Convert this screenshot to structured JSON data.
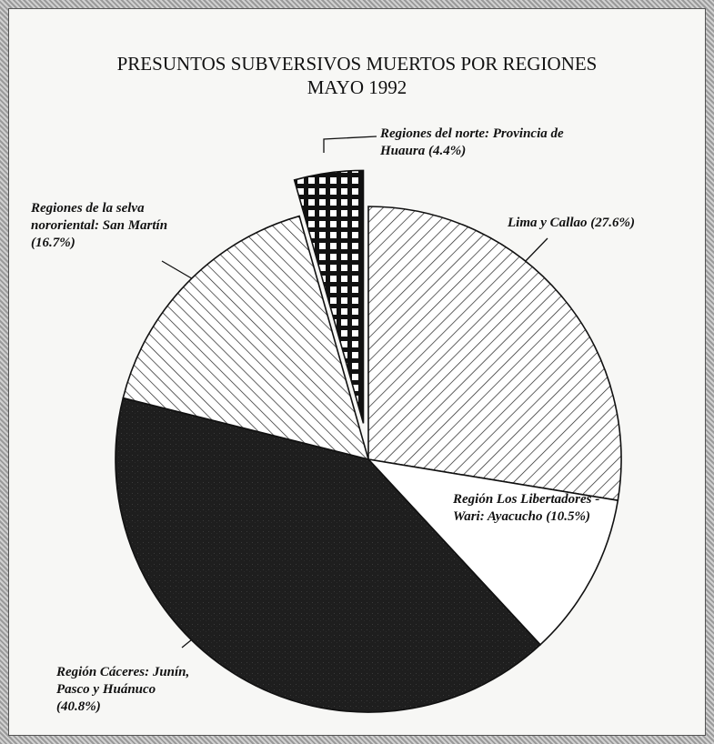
{
  "chart_data": {
    "type": "pie",
    "title": "PRESUNTOS SUBVERSIVOS MUERTOS POR REGIONES",
    "subtitle": "MAYO 1992",
    "categories": [
      "Lima y Callao",
      "Región Los Libertadores - Wari: Ayacucho",
      "Región Cáceres: Junín, Pasco y Huánuco",
      "Regiones de la selva nororiental: San Martín",
      "Regiones del norte: Provincia de Huaura"
    ],
    "values": [
      27.6,
      10.5,
      40.8,
      16.7,
      4.4
    ],
    "value_labels": [
      "(27.6%)",
      "(10.5%)",
      "(40.8%)",
      "(16.7%)",
      "(4.4%)"
    ],
    "patterns": [
      "hatch-right",
      "none",
      "solid",
      "hatch-left",
      "grid"
    ],
    "colors": [
      "#ffffff",
      "#ffffff",
      "#1e1e1e",
      "#ffffff",
      "#111111"
    ],
    "explode": [
      false,
      false,
      false,
      false,
      true
    ]
  }
}
